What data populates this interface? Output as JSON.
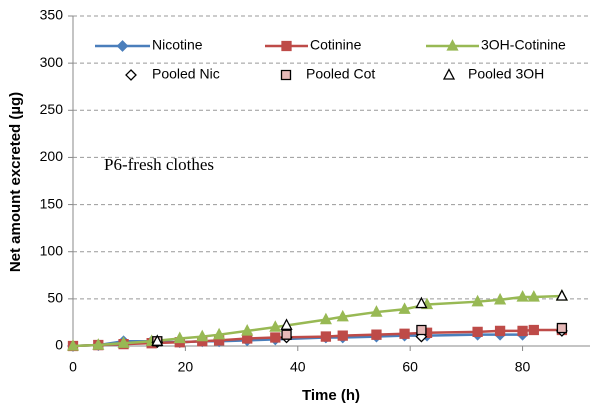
{
  "chart_data": {
    "type": "line",
    "annotation": "P6-fresh clothes",
    "x_label": "Time (h)",
    "y_label": "Net amount excreted (µg)",
    "xlim": [
      0,
      92
    ],
    "xticks": [
      0,
      20,
      40,
      60,
      80
    ],
    "ylim": [
      0,
      350
    ],
    "yticks": [
      0,
      50,
      100,
      150,
      200,
      250,
      300,
      350
    ],
    "grid": true,
    "series": [
      {
        "name": "Nicotine",
        "color": "#4a7ebb",
        "marker": "diamond",
        "line": true,
        "x": [
          0,
          4.5,
          9,
          14,
          19,
          23,
          26,
          31,
          36,
          45,
          48,
          54,
          59,
          63,
          72,
          76,
          80
        ],
        "values": [
          0,
          1,
          5,
          5,
          4,
          5,
          5,
          6,
          7,
          9,
          9,
          10,
          11,
          11,
          12,
          12,
          12
        ]
      },
      {
        "name": "Cotinine",
        "color": "#be4b48",
        "marker": "square",
        "line": true,
        "x": [
          0,
          4.5,
          9,
          14,
          19,
          23,
          26,
          31,
          36,
          45,
          48,
          54,
          59,
          63,
          72,
          76,
          80,
          82,
          87
        ],
        "values": [
          0,
          1,
          2,
          3,
          4,
          5,
          6,
          8,
          9,
          10,
          11,
          12,
          13,
          14,
          15,
          16,
          16,
          17,
          17
        ]
      },
      {
        "name": "3OH-Cotinine",
        "color": "#98b954",
        "marker": "triangle",
        "line": true,
        "x": [
          0,
          4.5,
          9,
          14,
          19,
          23,
          26,
          31,
          36,
          45,
          48,
          54,
          59,
          63,
          72,
          76,
          80,
          82,
          87
        ],
        "values": [
          0,
          1,
          3,
          5,
          8,
          10,
          12,
          16,
          20,
          28,
          31,
          36,
          39,
          44,
          47,
          49,
          52,
          52,
          53
        ]
      },
      {
        "name": "Pooled Nic",
        "color": "#ffffff",
        "marker": "diamond",
        "line": false,
        "x": [
          15,
          38,
          62,
          87
        ],
        "values": [
          4,
          9,
          10,
          16
        ]
      },
      {
        "name": "Pooled Cot",
        "color": "#e6b9b8",
        "marker": "square",
        "line": false,
        "x": [
          15,
          38,
          62,
          87
        ],
        "values": [
          5,
          12,
          17,
          19
        ]
      },
      {
        "name": "Pooled 3OH",
        "color": "#ffffff",
        "marker": "triangle",
        "line": false,
        "x": [
          15,
          38,
          62,
          87
        ],
        "values": [
          5,
          22,
          45,
          53
        ]
      }
    ]
  }
}
